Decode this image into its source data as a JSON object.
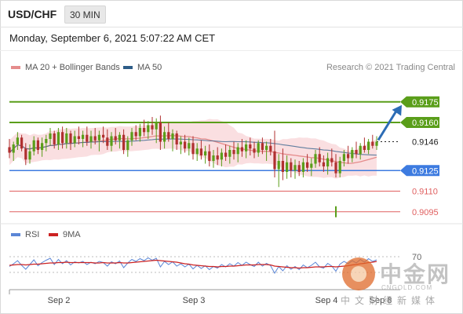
{
  "header": {
    "symbol": "USD/CHF",
    "timeframe": "30 MIN"
  },
  "datetime": "Monday, September 6, 2021 5:07:22 AM CET",
  "legend": {
    "ma20": {
      "label": "MA 20 + Bollinger Bands",
      "color": "#e58c8c"
    },
    "ma50": {
      "label": "MA 50",
      "color": "#2e5d88"
    },
    "credit": "Research © 2021 Trading Central"
  },
  "rsi_legend": {
    "rsi": {
      "label": "RSI",
      "color": "#5b86d6"
    },
    "ma9": {
      "label": "9MA",
      "color": "#cc2222"
    }
  },
  "colors": {
    "resistance": "#5a9e1a",
    "pivot": "#3d7be0",
    "support": "#e06060",
    "current": "#222222",
    "bull_candle": "#5a9e1a",
    "bear_candle": "#b03030",
    "band_fill": "#f9d9dc",
    "arrow": "#2c6cb5"
  },
  "chart_data": [
    {
      "type": "candlestick",
      "x_labels": [
        "Sep 2",
        "Sep 3",
        "Sep 4",
        "Sep 8"
      ],
      "ylim": [
        0.9088,
        0.9192
      ],
      "levels": [
        {
          "value": 0.9175,
          "label": "0.9175",
          "kind": "resistance"
        },
        {
          "value": 0.916,
          "label": "0.9160",
          "kind": "resistance"
        },
        {
          "value": 0.9146,
          "label": "0.9146",
          "kind": "current"
        },
        {
          "value": 0.9125,
          "label": "0.9125",
          "kind": "pivot"
        },
        {
          "value": 0.911,
          "label": "0.9110",
          "kind": "support"
        },
        {
          "value": 0.9095,
          "label": "0.9095",
          "kind": "support"
        }
      ],
      "forecast": {
        "from": 0.9146,
        "to": 0.9175,
        "direction": "up"
      },
      "candles": [
        [
          0.9142,
          0.9148,
          0.9134,
          0.9138
        ],
        [
          0.9138,
          0.9146,
          0.9132,
          0.9144
        ],
        [
          0.9144,
          0.9153,
          0.914,
          0.9149
        ],
        [
          0.9149,
          0.9151,
          0.9139,
          0.9141
        ],
        [
          0.9141,
          0.9145,
          0.9129,
          0.9133
        ],
        [
          0.9133,
          0.9144,
          0.913,
          0.9139
        ],
        [
          0.9139,
          0.915,
          0.9136,
          0.9147
        ],
        [
          0.9147,
          0.9149,
          0.9137,
          0.914
        ],
        [
          0.914,
          0.9149,
          0.9135,
          0.9145
        ],
        [
          0.9145,
          0.9151,
          0.9139,
          0.9148
        ],
        [
          0.9148,
          0.9156,
          0.9143,
          0.9152
        ],
        [
          0.9152,
          0.9154,
          0.9141,
          0.9144
        ],
        [
          0.9144,
          0.9156,
          0.914,
          0.9153
        ],
        [
          0.9153,
          0.9157,
          0.9141,
          0.9145
        ],
        [
          0.9145,
          0.9156,
          0.9141,
          0.9152
        ],
        [
          0.9152,
          0.9154,
          0.914,
          0.9145
        ],
        [
          0.9145,
          0.9154,
          0.9142,
          0.915
        ],
        [
          0.915,
          0.9157,
          0.9144,
          0.9148
        ],
        [
          0.9148,
          0.9154,
          0.9142,
          0.9151
        ],
        [
          0.9151,
          0.9157,
          0.9143,
          0.9146
        ],
        [
          0.9146,
          0.9154,
          0.9141,
          0.915
        ],
        [
          0.915,
          0.9156,
          0.9144,
          0.9147
        ],
        [
          0.9147,
          0.9154,
          0.9139,
          0.9151
        ],
        [
          0.9151,
          0.9157,
          0.9145,
          0.9149
        ],
        [
          0.9149,
          0.9155,
          0.914,
          0.9143
        ],
        [
          0.9143,
          0.9153,
          0.9139,
          0.915
        ],
        [
          0.915,
          0.9156,
          0.9144,
          0.9147
        ],
        [
          0.9147,
          0.9153,
          0.9141,
          0.9151
        ],
        [
          0.9151,
          0.9155,
          0.9137,
          0.914
        ],
        [
          0.914,
          0.915,
          0.9135,
          0.9147
        ],
        [
          0.9147,
          0.9156,
          0.9143,
          0.9153
        ],
        [
          0.9153,
          0.9158,
          0.9147,
          0.915
        ],
        [
          0.915,
          0.9159,
          0.9146,
          0.9156
        ],
        [
          0.9156,
          0.9162,
          0.915,
          0.9153
        ],
        [
          0.9153,
          0.9161,
          0.9148,
          0.9158
        ],
        [
          0.9158,
          0.9164,
          0.9151,
          0.9155
        ],
        [
          0.9155,
          0.9163,
          0.9145,
          0.916
        ],
        [
          0.916,
          0.9165,
          0.914,
          0.9146
        ],
        [
          0.9146,
          0.9157,
          0.9141,
          0.9153
        ],
        [
          0.9153,
          0.916,
          0.9146,
          0.9148
        ],
        [
          0.9148,
          0.9155,
          0.9139,
          0.9152
        ],
        [
          0.9152,
          0.9154,
          0.914,
          0.9144
        ],
        [
          0.9144,
          0.915,
          0.9137,
          0.9146
        ],
        [
          0.9146,
          0.9151,
          0.9138,
          0.9141
        ],
        [
          0.9141,
          0.9149,
          0.9136,
          0.9145
        ],
        [
          0.9145,
          0.915,
          0.9133,
          0.9137
        ],
        [
          0.9137,
          0.9145,
          0.9132,
          0.9141
        ],
        [
          0.9141,
          0.9147,
          0.9133,
          0.9136
        ],
        [
          0.9136,
          0.9143,
          0.913,
          0.9139
        ],
        [
          0.9139,
          0.9144,
          0.9128,
          0.9132
        ],
        [
          0.9132,
          0.914,
          0.9127,
          0.9136
        ],
        [
          0.9136,
          0.9142,
          0.9129,
          0.9133
        ],
        [
          0.9133,
          0.9141,
          0.9128,
          0.9138
        ],
        [
          0.9138,
          0.9144,
          0.9132,
          0.9135
        ],
        [
          0.9135,
          0.9143,
          0.913,
          0.914
        ],
        [
          0.914,
          0.9146,
          0.9133,
          0.9137
        ],
        [
          0.9137,
          0.9145,
          0.9131,
          0.9142
        ],
        [
          0.9142,
          0.9148,
          0.9135,
          0.9139
        ],
        [
          0.9139,
          0.9147,
          0.9134,
          0.9144
        ],
        [
          0.9144,
          0.9149,
          0.9136,
          0.9141
        ],
        [
          0.9141,
          0.9146,
          0.9134,
          0.9138
        ],
        [
          0.9138,
          0.9147,
          0.9135,
          0.9145
        ],
        [
          0.9145,
          0.9149,
          0.9137,
          0.914
        ],
        [
          0.914,
          0.9146,
          0.9132,
          0.9143
        ],
        [
          0.9143,
          0.9148,
          0.9136,
          0.9139
        ],
        [
          0.9139,
          0.9154,
          0.912,
          0.9126
        ],
        [
          0.9126,
          0.9137,
          0.9113,
          0.9132
        ],
        [
          0.9132,
          0.9141,
          0.9118,
          0.9124
        ],
        [
          0.9124,
          0.9136,
          0.9119,
          0.9131
        ],
        [
          0.9131,
          0.9134,
          0.912,
          0.9125
        ],
        [
          0.9125,
          0.9133,
          0.9119,
          0.9129
        ],
        [
          0.9129,
          0.9132,
          0.9121,
          0.9124
        ],
        [
          0.9124,
          0.9134,
          0.912,
          0.9131
        ],
        [
          0.9131,
          0.9137,
          0.9124,
          0.9127
        ],
        [
          0.9127,
          0.9134,
          0.9121,
          0.913
        ],
        [
          0.913,
          0.914,
          0.9127,
          0.9137
        ],
        [
          0.9137,
          0.9142,
          0.9128,
          0.9131
        ],
        [
          0.9131,
          0.9136,
          0.9124,
          0.9128
        ],
        [
          0.9128,
          0.9138,
          0.9122,
          0.9134
        ],
        [
          0.9134,
          0.9141,
          0.9128,
          0.9131
        ],
        [
          0.9131,
          0.9137,
          0.912,
          0.9123
        ],
        [
          0.9123,
          0.9135,
          0.912,
          0.9132
        ],
        [
          0.9132,
          0.914,
          0.9128,
          0.9137
        ],
        [
          0.9137,
          0.9143,
          0.913,
          0.9134
        ],
        [
          0.9134,
          0.9142,
          0.9131,
          0.914
        ],
        [
          0.914,
          0.9146,
          0.9134,
          0.9137
        ],
        [
          0.9137,
          0.9145,
          0.9133,
          0.9143
        ],
        [
          0.9143,
          0.9149,
          0.9138,
          0.914
        ],
        [
          0.914,
          0.9148,
          0.9137,
          0.9146
        ],
        [
          0.9146,
          0.9151,
          0.9141,
          0.9143
        ],
        [
          0.9143,
          0.915,
          0.914,
          0.9146
        ]
      ]
    },
    {
      "type": "line",
      "x_labels": [
        "Sep 2",
        "Sep 3",
        "Sep 4",
        "Sep 8"
      ],
      "y_ticks": [
        70
      ],
      "series": [
        {
          "name": "RSI",
          "values": [
            45,
            52,
            60,
            48,
            38,
            50,
            62,
            47,
            55,
            61,
            66,
            50,
            63,
            52,
            60,
            49,
            57,
            54,
            58,
            50,
            56,
            52,
            58,
            55,
            46,
            57,
            52,
            59,
            42,
            54,
            63,
            58,
            65,
            60,
            67,
            61,
            66,
            44,
            58,
            50,
            57,
            46,
            52,
            44,
            51,
            39,
            48,
            40,
            47,
            37,
            45,
            41,
            50,
            44,
            52,
            46,
            55,
            48,
            56,
            50,
            45,
            56,
            46,
            53,
            47,
            28,
            45,
            34,
            47,
            38,
            45,
            37,
            49,
            42,
            48,
            56,
            44,
            41,
            53,
            46,
            33,
            51,
            58,
            52,
            60,
            54,
            63,
            56,
            65,
            58,
            62
          ]
        },
        {
          "name": "9MA",
          "values": [
            48,
            49,
            50,
            50,
            49,
            50,
            51,
            51,
            52,
            53,
            54,
            54,
            55,
            55,
            56,
            55,
            55,
            55,
            55,
            55,
            55,
            54,
            54,
            55,
            54,
            54,
            54,
            55,
            54,
            54,
            55,
            56,
            57,
            58,
            59,
            60,
            61,
            60,
            59,
            58,
            57,
            56,
            54,
            52,
            51,
            49,
            48,
            47,
            46,
            45,
            45,
            44,
            45,
            45,
            46,
            46,
            47,
            48,
            49,
            49,
            49,
            50,
            50,
            50,
            49,
            46,
            45,
            44,
            43,
            42,
            42,
            41,
            42,
            42,
            43,
            44,
            44,
            44,
            45,
            45,
            44,
            45,
            46,
            47,
            49,
            50,
            52,
            53,
            55,
            56,
            58
          ]
        }
      ]
    }
  ]
}
